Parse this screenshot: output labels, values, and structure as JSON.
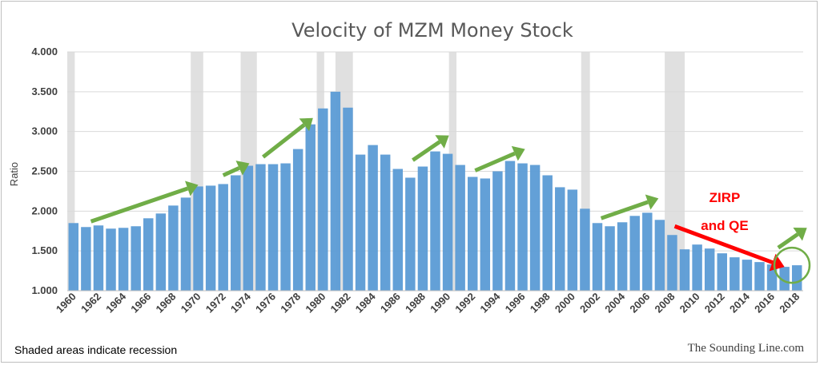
{
  "chart_data": {
    "type": "bar",
    "title": "Velocity of MZM Money Stock",
    "ylabel": "Ratio",
    "xlabel": "",
    "ylim": [
      1.0,
      4.0
    ],
    "yticks": [
      "1.000",
      "1.500",
      "2.000",
      "2.500",
      "3.000",
      "3.500",
      "4.000"
    ],
    "x": [
      1960,
      1961,
      1962,
      1963,
      1964,
      1965,
      1966,
      1967,
      1968,
      1969,
      1970,
      1971,
      1972,
      1973,
      1974,
      1975,
      1976,
      1977,
      1978,
      1979,
      1980,
      1981,
      1982,
      1983,
      1984,
      1985,
      1986,
      1987,
      1988,
      1989,
      1990,
      1991,
      1992,
      1993,
      1994,
      1995,
      1996,
      1997,
      1998,
      1999,
      2000,
      2001,
      2002,
      2003,
      2004,
      2005,
      2006,
      2007,
      2008,
      2009,
      2010,
      2011,
      2012,
      2013,
      2014,
      2015,
      2016,
      2017,
      2018
    ],
    "xtick_labels": [
      "1960",
      "1962",
      "1964",
      "1966",
      "1968",
      "1970",
      "1972",
      "1974",
      "1976",
      "1978",
      "1980",
      "1982",
      "1984",
      "1986",
      "1988",
      "1990",
      "1992",
      "1994",
      "1996",
      "1998",
      "2000",
      "2002",
      "2004",
      "2006",
      "2008",
      "2010",
      "2012",
      "2014",
      "2016",
      "2018"
    ],
    "values": [
      1.85,
      1.8,
      1.82,
      1.78,
      1.79,
      1.81,
      1.91,
      1.97,
      2.07,
      2.17,
      2.31,
      2.32,
      2.34,
      2.45,
      2.57,
      2.59,
      2.59,
      2.6,
      2.78,
      3.09,
      3.29,
      3.5,
      3.3,
      2.71,
      2.83,
      2.71,
      2.53,
      2.42,
      2.56,
      2.75,
      2.72,
      2.58,
      2.43,
      2.41,
      2.5,
      2.63,
      2.6,
      2.58,
      2.45,
      2.3,
      2.27,
      2.03,
      1.85,
      1.81,
      1.86,
      1.94,
      1.98,
      1.89,
      1.7,
      1.52,
      1.58,
      1.53,
      1.47,
      1.42,
      1.39,
      1.36,
      1.33,
      1.3,
      1.32
    ],
    "recessions": [
      [
        1960.0,
        1960.6
      ],
      [
        1969.9,
        1970.9
      ],
      [
        1973.9,
        1975.2
      ],
      [
        1980.0,
        1980.6
      ],
      [
        1981.5,
        1982.9
      ],
      [
        1990.6,
        1991.2
      ],
      [
        2001.2,
        2001.9
      ],
      [
        2007.9,
        2009.5
      ]
    ],
    "bar_color": "#5b9bd5",
    "recession_color": "#e0e0e0",
    "trend_color": "#70ad47",
    "qe_color": "#ff0000",
    "trend_arrows": [
      [
        [
          1961.4,
          1.87
        ],
        [
          1970.0,
          2.33
        ]
      ],
      [
        [
          1972.0,
          2.45
        ],
        [
          1974.1,
          2.6
        ]
      ],
      [
        [
          1975.2,
          2.68
        ],
        [
          1979.2,
          3.17
        ]
      ],
      [
        [
          1987.2,
          2.64
        ],
        [
          1990.1,
          2.95
        ]
      ],
      [
        [
          1992.2,
          2.51
        ],
        [
          1996.2,
          2.78
        ]
      ],
      [
        [
          2002.3,
          1.91
        ],
        [
          2006.9,
          2.16
        ]
      ],
      [
        [
          2016.5,
          1.54
        ],
        [
          2018.8,
          1.79
        ]
      ]
    ],
    "qe_arrow": [
      [
        2008.2,
        1.81
      ],
      [
        2017.0,
        1.3
      ]
    ],
    "circle": {
      "x": 2017.6,
      "y": 1.32
    },
    "annotation": {
      "line1": "ZIRP",
      "line2": "and QE"
    },
    "footnote": "Shaded areas indicate recession",
    "credit": "The Sounding Line.com"
  }
}
